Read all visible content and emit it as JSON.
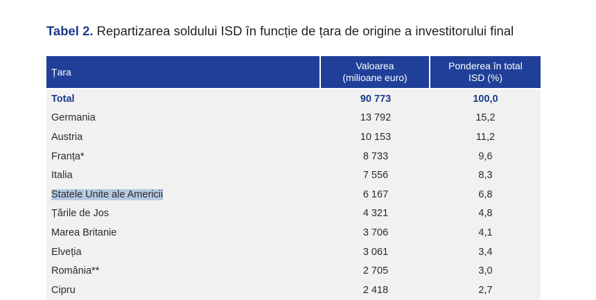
{
  "title": {
    "label": "Tabel 2.",
    "text": "Repartizarea soldului ISD în funcție de țara de origine a investitorului final"
  },
  "table": {
    "headers": {
      "country": "Țara",
      "value_line1": "Valoarea",
      "value_line2": "(milioane euro)",
      "share_line1": "Ponderea în total",
      "share_line2": "ISD (%)"
    },
    "rows": [
      {
        "country": "Total",
        "value": "90 773",
        "share": "100,0"
      },
      {
        "country": "Germania",
        "value": "13 792",
        "share": "15,2"
      },
      {
        "country": "Austria",
        "value": "10 153",
        "share": "11,2"
      },
      {
        "country": "Franța*",
        "value": "8 733",
        "share": "9,6"
      },
      {
        "country": "Italia",
        "value": "7 556",
        "share": "8,3"
      },
      {
        "country": "Statele Unite ale Americii",
        "value": "6 167",
        "share": "6,8"
      },
      {
        "country": "Țările de Jos",
        "value": "4 321",
        "share": "4,8"
      },
      {
        "country": "Marea Britanie",
        "value": "3 706",
        "share": "4,1"
      },
      {
        "country": "Elveția",
        "value": "3 061",
        "share": "3,4"
      },
      {
        "country": "România**",
        "value": "2 705",
        "share": "3,0"
      },
      {
        "country": "Cipru",
        "value": "2 418",
        "share": "2,7"
      }
    ]
  },
  "colors": {
    "header_bg": "#1f3f98",
    "title_label": "#1b3a8c",
    "row_bg": "#f1f1f1",
    "selection_highlight": "#b6c9e2"
  }
}
